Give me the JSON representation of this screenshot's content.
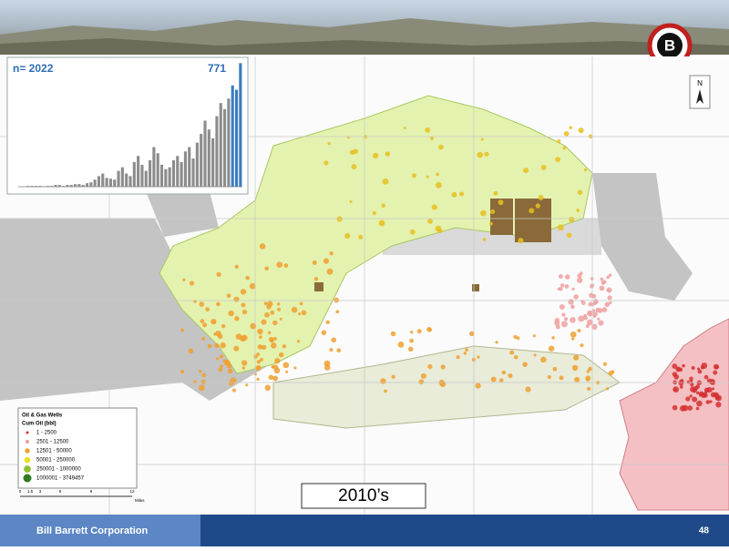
{
  "header": {
    "logo": "B"
  },
  "inset_chart": {
    "type": "bar",
    "count_label": "n= 2022",
    "highlight_label": "771",
    "ylim": [
      0,
      790
    ],
    "series": [
      {
        "color": "#8c8c8c",
        "values": [
          0,
          0,
          5,
          5,
          5,
          5,
          0,
          5,
          5,
          11,
          11,
          5,
          11,
          11,
          16,
          16,
          11,
          22,
          27,
          44,
          66,
          82,
          55,
          50,
          44,
          99,
          121,
          82,
          66,
          154,
          192,
          137,
          99,
          165,
          247,
          209,
          137,
          110,
          121,
          165,
          192,
          154,
          220,
          247,
          176,
          275,
          330,
          412,
          357,
          302,
          440,
          522,
          484,
          550,
          null,
          null,
          null
        ]
      },
      {
        "color": "#3a7cc0",
        "values": [
          null,
          null,
          null,
          null,
          null,
          null,
          null,
          null,
          null,
          null,
          null,
          null,
          null,
          null,
          null,
          null,
          null,
          null,
          null,
          null,
          null,
          null,
          null,
          null,
          null,
          null,
          null,
          null,
          null,
          null,
          null,
          null,
          null,
          null,
          null,
          null,
          null,
          null,
          null,
          null,
          null,
          null,
          null,
          null,
          null,
          null,
          null,
          null,
          null,
          null,
          null,
          null,
          null,
          null,
          632,
          605,
          771
        ]
      }
    ]
  },
  "legend": {
    "title": "Oil & Gas Wells",
    "subtitle": "Cum Oil (bbl)",
    "items": [
      {
        "label": "1 - 2500",
        "color": "#d43030"
      },
      {
        "label": "2501 - 12500",
        "color": "#f0a0a0"
      },
      {
        "label": "12501 - 50000",
        "color": "#f0a030"
      },
      {
        "label": "50001 - 250000",
        "color": "#e8e020"
      },
      {
        "label": "250001 - 1000000",
        "color": "#90c030"
      },
      {
        "label": "1000001 - 3749457",
        "color": "#2e7d20"
      }
    ]
  },
  "scale_bar": {
    "ticks": [
      "0",
      "1.5",
      "3",
      "6",
      "9",
      "12"
    ],
    "unit": "Miles"
  },
  "north": "N",
  "period_label": "2010’s",
  "footer": {
    "company": "Bill Barrett Corporation",
    "page": "48"
  }
}
